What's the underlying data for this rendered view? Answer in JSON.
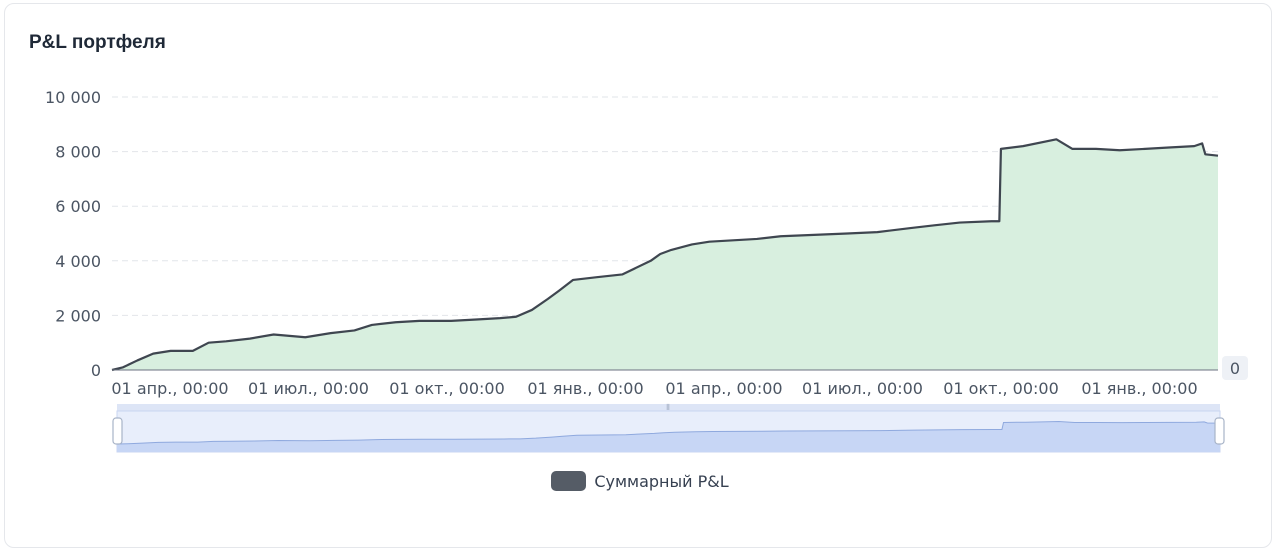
{
  "card": {
    "title": "P&L портфеля"
  },
  "chart_data": {
    "type": "area",
    "title": "P&L портфеля",
    "xlabel": "",
    "ylabel": "",
    "ylim": [
      0,
      10000
    ],
    "yticks": [
      "0",
      "2 000",
      "4 000",
      "6 000",
      "8 000",
      "10 000"
    ],
    "xticks": [
      "01 апр., 00:00",
      "01 июл., 00:00",
      "01 окт., 00:00",
      "01 янв., 00:00",
      "01 апр., 00:00",
      "01 июл., 00:00",
      "01 окт., 00:00",
      "01 янв., 00:00"
    ],
    "right_axis_label": "0",
    "grid": true,
    "legend_position": "bottom",
    "series": [
      {
        "name": "Суммарный P&L",
        "color": "#3f4650",
        "fill": "#d8efdf",
        "x": [
          "2023-03-25",
          "2023-04-01",
          "2023-04-10",
          "2023-04-20",
          "2023-05-01",
          "2023-05-15",
          "2023-05-25",
          "2023-06-05",
          "2023-06-20",
          "2023-07-05",
          "2023-07-25",
          "2023-08-10",
          "2023-08-25",
          "2023-09-05",
          "2023-09-20",
          "2023-10-05",
          "2023-10-25",
          "2023-11-10",
          "2023-11-25",
          "2023-12-05",
          "2023-12-15",
          "2023-12-25",
          "2024-01-01",
          "2024-01-10",
          "2024-01-25",
          "2024-02-10",
          "2024-02-28",
          "2024-03-05",
          "2024-03-12",
          "2024-03-25",
          "2024-04-05",
          "2024-04-20",
          "2024-05-05",
          "2024-05-20",
          "2024-06-10",
          "2024-07-01",
          "2024-07-20",
          "2024-08-10",
          "2024-08-25",
          "2024-09-10",
          "2024-09-30",
          "2024-10-05",
          "2024-10-06",
          "2024-10-20",
          "2024-11-10",
          "2024-11-20",
          "2024-12-05",
          "2024-12-20",
          "2025-01-05",
          "2025-01-20",
          "2025-02-05",
          "2025-02-10",
          "2025-02-12",
          "2025-02-20"
        ],
        "values": [
          0,
          100,
          350,
          600,
          700,
          700,
          1000,
          1050,
          1150,
          1300,
          1200,
          1350,
          1450,
          1650,
          1750,
          1800,
          1800,
          1850,
          1900,
          1950,
          2200,
          2600,
          2900,
          3300,
          3400,
          3500,
          4000,
          4250,
          4400,
          4600,
          4700,
          4750,
          4800,
          4900,
          4950,
          5000,
          5050,
          5200,
          5300,
          5400,
          5450,
          5450,
          8100,
          8200,
          8450,
          8100,
          8100,
          8050,
          8100,
          8150,
          8200,
          8300,
          7900,
          7850
        ]
      }
    ]
  },
  "zoom": {
    "handle_grip": "⦀",
    "start": 0,
    "end": 100
  },
  "legend": {
    "label": "Суммарный P&L"
  },
  "icons": {
    "legend_swatch": "rounded-rect-swatch"
  }
}
